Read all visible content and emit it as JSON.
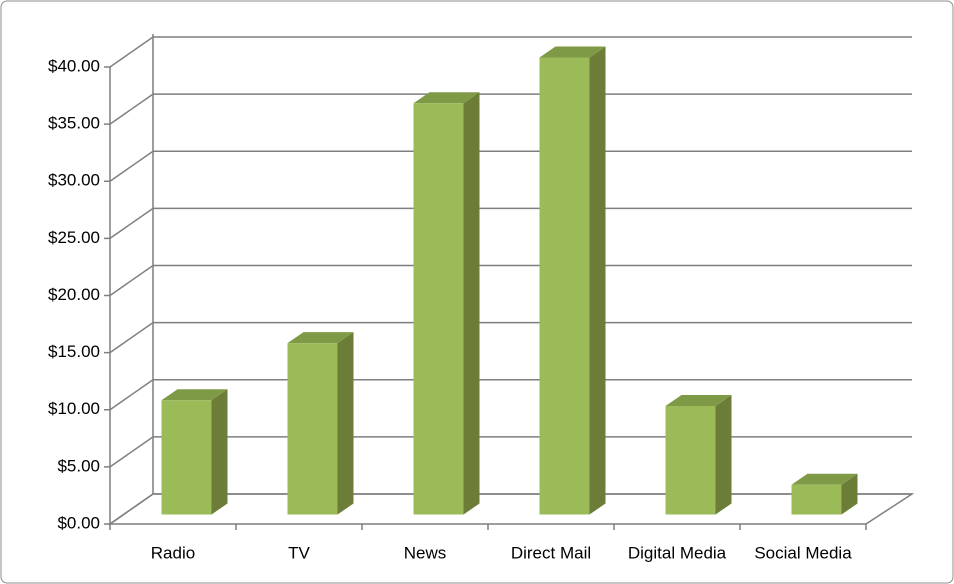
{
  "chart_data": {
    "type": "bar3d",
    "categories": [
      "Radio",
      "TV",
      "News",
      "Direct Mail",
      "Digital Media",
      "Social Media"
    ],
    "values": [
      10,
      15,
      36,
      40,
      9.5,
      2.6
    ],
    "color": "#9bbb59",
    "ylim": [
      0,
      40
    ],
    "yticks": [
      {
        "value": 0,
        "label": "$0.00"
      },
      {
        "value": 5,
        "label": "$5.00"
      },
      {
        "value": 10,
        "label": "$10.00"
      },
      {
        "value": 15,
        "label": "$15.00"
      },
      {
        "value": 20,
        "label": "$20.00"
      },
      {
        "value": 25,
        "label": "$25.00"
      },
      {
        "value": 30,
        "label": "$30.00"
      },
      {
        "value": 35,
        "label": "$35.00"
      },
      {
        "value": 40,
        "label": "$40.00"
      }
    ],
    "grid": true
  }
}
